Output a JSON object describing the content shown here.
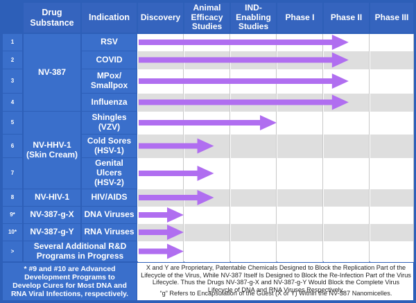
{
  "header": {
    "drug_substance": "Drug\nSubstance",
    "indication": "Indication",
    "stages": [
      "Discovery",
      "Animal\nEfficacy\nStudies",
      "IND-\nEnabling\nStudies",
      "Phase I",
      "Phase II",
      "Phase III"
    ]
  },
  "rows": [
    {
      "num": "1",
      "indication": "RSV",
      "progress_stage": 4.55
    },
    {
      "num": "2",
      "indication": "COVID",
      "progress_stage": 4.55
    },
    {
      "num": "3",
      "indication": "MPox/\nSmallpox",
      "progress_stage": 4.55
    },
    {
      "num": "4",
      "indication": "Influenza",
      "progress_stage": 4.55
    },
    {
      "num": "5",
      "indication": "Shingles\n(VZV)",
      "progress_stage": 3.0
    },
    {
      "num": "6",
      "indication": "Cold Sores\n(HSV-1)",
      "progress_stage": 1.65
    },
    {
      "num": "7",
      "indication": "Genital\nUlcers\n(HSV-2)",
      "progress_stage": 1.65
    },
    {
      "num": "8",
      "indication": "HIV/AIDS",
      "progress_stage": 1.65
    },
    {
      "num": "9*",
      "indication": "DNA Viruses",
      "progress_stage": 1.0
    },
    {
      "num": "10*",
      "indication": "RNA Viruses",
      "progress_stage": 1.0
    },
    {
      "num": ">",
      "indication": "",
      "progress_stage": 1.0
    }
  ],
  "groups": [
    {
      "label": "NV-387"
    },
    {
      "label": "NV-HHV-1\n(Skin Cream)"
    },
    {
      "label": "NV-HIV-1"
    },
    {
      "label": "NV-387-g-X"
    },
    {
      "label": "NV-387-g-Y"
    },
    {
      "label": "Several Additional R&D\nPrograms in Progress"
    }
  ],
  "footnotes": {
    "left": "* #9 and #10 are Advanced Development Programs to Develop Cures for Most DNA and RNA Viral Infections, respectively.",
    "right_1": "X and Y are Proprietary, Patentable Chemicals Designed to Block the Replication Part of the Lifecycle of the Virus, While NV-387 Itself Is Designed to Block the Re-Infection Part of the Virus Lifecycle. Thus the Drugs NV-387-g-X and NV-387-g-Y Would Block the Complete Virus Lifecycle of DNA and RNA Viruses Respectively.",
    "right_2": "“g” Refers to Encapsulation of the Guest (X or Y) Within the NV-387 Nanomicelles."
  },
  "colors": {
    "frame_blue": "#2d5fb8",
    "cell_blue": "#3a6fcb",
    "header_blue": "#3564be",
    "stripe_gray": "#dedede",
    "arrow_purple": "#b06ef0"
  }
}
